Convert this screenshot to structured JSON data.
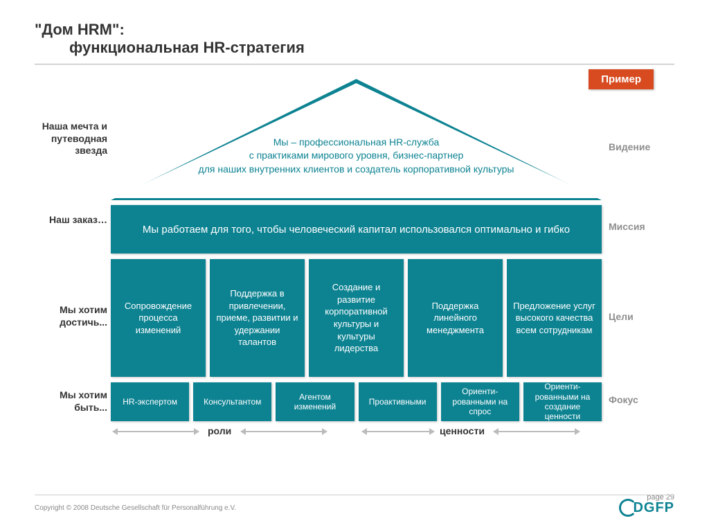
{
  "colors": {
    "teal": "#0d8392",
    "badge": "#d84a1f",
    "grey": "#8e8e8e"
  },
  "title": {
    "line1": "\"Дом HRM\":",
    "line2": "функциональная HR-стратегия"
  },
  "badge": "Пример",
  "left_labels": {
    "vision": "Наша мечта и путеводная звезда",
    "mission": "Наш заказ…",
    "goals": "Мы хотим достичь...",
    "focus": "Мы хотим быть..."
  },
  "right_labels": {
    "vision": "Видение",
    "mission": "Миссия",
    "goals": "Цели",
    "focus": "Фокус"
  },
  "roof": "Мы – профессиональная HR-служба\nс практиками мирового уровня, бизнес-партнер\nдля наших внутренних клиентов и создатель корпоративной культуры",
  "mission": "Мы работаем для того, чтобы человеческий капитал использовался оптимально и гибко",
  "pillars": [
    "Сопровождение процесса изменений",
    "Поддержка в привлечении, приеме, развитии и удержании талантов",
    "Создание и развитие корпоративной культуры и культуры лидерства",
    "Поддержка линейного менеджмента",
    "Предложение услуг высокого качества всем сотрудникам"
  ],
  "focus": [
    "HR-экспертом",
    "Консультантом",
    "Агентом изменений",
    "Проактивными",
    "Ориенти-рованными на спрос",
    "Ориенти-рованными на создание ценности"
  ],
  "sub_labels": {
    "roles": "роли",
    "values": "ценности"
  },
  "footer": {
    "copyright": "Copyright © 2008 Deutsche Gesellschaft für Personalführung e.V.",
    "page": "page 29",
    "logo": "DGFP"
  }
}
